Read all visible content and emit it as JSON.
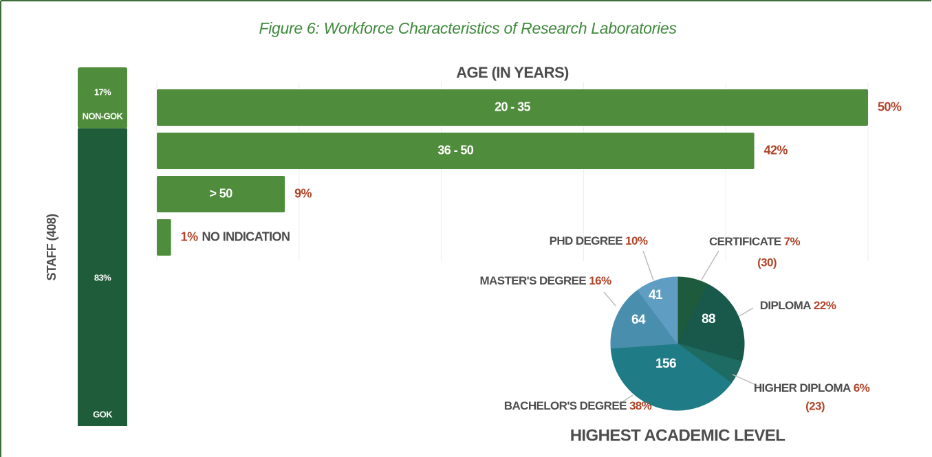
{
  "title": "Figure 6: Workforce Characteristics of Research Laboratories",
  "chart_data": [
    {
      "type": "stacked-bar",
      "ylabel": "STAFF (408)",
      "series": [
        {
          "name": "NON-GOK",
          "color": "#4f8c3b",
          "values": [
            17
          ],
          "value_labels": [
            "17%"
          ]
        },
        {
          "name": "GOK",
          "color": "#1f5d3a",
          "values": [
            83
          ],
          "value_labels": [
            "83%"
          ]
        }
      ]
    },
    {
      "type": "hbar",
      "title": "AGE (IN YEARS)",
      "categories": [
        "20 - 35",
        "36 - 50",
        "> 50",
        "NO INDICATION"
      ],
      "values": [
        50,
        42,
        9,
        1
      ],
      "value_labels": [
        "50%",
        "42%",
        "9%",
        "1%"
      ],
      "color": "#4f8c3b",
      "xlim": [
        0,
        50
      ],
      "xticks": [
        0,
        10,
        20,
        30,
        40,
        50
      ],
      "grid": true
    },
    {
      "type": "pie",
      "title": "HIGHEST ACADEMIC LEVEL",
      "categories": [
        "CERTIFICATE",
        "DIPLOMA",
        "HIGHER DIPLOMA",
        "BACHELOR'S DEGREE",
        "MASTER'S DEGREE",
        "PHD DEGREE"
      ],
      "values": [
        30,
        88,
        23,
        156,
        64,
        41
      ],
      "value_labels": [
        "(30)",
        "88",
        "(23)",
        "156",
        "64",
        "41"
      ],
      "percents": [
        7,
        22,
        6,
        38,
        16,
        10
      ],
      "percent_labels": [
        "7%",
        "22%",
        "6%",
        "38%",
        "16%",
        "10%"
      ],
      "colors": [
        "#1e5a3c",
        "#19594b",
        "#1d6b62",
        "#1f7b86",
        "#4a8eae",
        "#5f9ec2"
      ]
    }
  ]
}
